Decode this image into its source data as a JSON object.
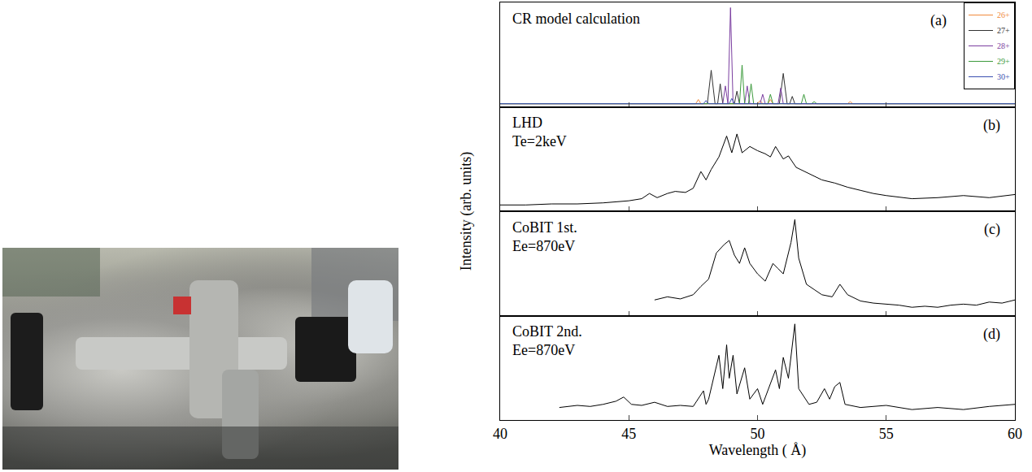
{
  "chart_data": {
    "type": "line",
    "x_label": "Wavelength ( Å)",
    "y_label": "Intensity (arb. units)",
    "xlim": [
      40,
      60
    ],
    "xticks": [
      40,
      45,
      50,
      55,
      60
    ],
    "tick_labels": "x",
    "panels": [
      {
        "label": "(a)",
        "text": [
          "CR model calculation"
        ],
        "ylim": [
          0,
          1
        ],
        "legend": "upper right",
        "series": [
          {
            "name": "26+",
            "color": "#f08a3c",
            "x": [
              40,
              47.6,
              47.7,
              47.8,
              50.0,
              50.1,
              50.2,
              50.4,
              50.5,
              50.6,
              53.5,
              53.6,
              53.7,
              60
            ],
            "values": [
              0.03,
              0.03,
              0.07,
              0.03,
              0.03,
              0.06,
              0.03,
              0.03,
              0.07,
              0.03,
              0.03,
              0.05,
              0.03,
              0.03
            ]
          },
          {
            "name": "27+",
            "color": "#333333",
            "x": [
              40,
              48.05,
              48.2,
              48.35,
              48.45,
              48.55,
              48.65,
              49.1,
              49.2,
              49.3,
              50.85,
              51.0,
              51.15,
              51.25,
              51.35,
              51.45,
              60
            ],
            "values": [
              0.03,
              0.03,
              0.35,
              0.03,
              0.03,
              0.22,
              0.03,
              0.03,
              0.15,
              0.03,
              0.03,
              0.32,
              0.03,
              0.03,
              0.1,
              0.03,
              0.03
            ]
          },
          {
            "name": "28+",
            "color": "#7b3fa0",
            "x": [
              40,
              48.65,
              48.75,
              48.85,
              48.95,
              49.05,
              49.5,
              49.6,
              49.7,
              50.1,
              50.2,
              50.3,
              50.8,
              50.9,
              51.0,
              60
            ],
            "values": [
              0.03,
              0.03,
              0.2,
              0.03,
              0.95,
              0.03,
              0.03,
              0.2,
              0.03,
              0.03,
              0.12,
              0.03,
              0.03,
              0.18,
              0.03,
              0.03
            ]
          },
          {
            "name": "29+",
            "color": "#3c9a3c",
            "x": [
              40,
              49.3,
              49.4,
              49.5,
              49.65,
              49.75,
              49.85,
              50.4,
              50.5,
              50.6,
              51.7,
              51.8,
              51.9,
              52.1,
              52.2,
              52.3,
              60
            ],
            "values": [
              0.03,
              0.03,
              0.4,
              0.03,
              0.03,
              0.22,
              0.03,
              0.03,
              0.12,
              0.03,
              0.03,
              0.12,
              0.03,
              0.03,
              0.05,
              0.03,
              0.03
            ]
          },
          {
            "name": "30+",
            "color": "#3b4fb0",
            "x": [
              40,
              47.9,
              48.0,
              48.1,
              48.9,
              49.0,
              49.1,
              60
            ],
            "values": [
              0.03,
              0.03,
              0.06,
              0.03,
              0.03,
              0.08,
              0.03,
              0.03
            ]
          }
        ]
      },
      {
        "label": "(b)",
        "text": [
          "LHD",
          "Te=2keV"
        ],
        "ylim": [
          0,
          1
        ],
        "series": [
          {
            "color": "#000000",
            "x": [
              40,
              41,
              42,
              43,
              44,
              45,
              45.5,
              45.8,
              46.1,
              46.5,
              46.8,
              47.2,
              47.5,
              47.8,
              48.0,
              48.2,
              48.5,
              48.8,
              49.0,
              49.2,
              49.4,
              49.7,
              50.0,
              50.3,
              50.5,
              50.7,
              51.0,
              51.2,
              51.5,
              52,
              52.5,
              53,
              53.5,
              54,
              54.5,
              55,
              56,
              57,
              58,
              59,
              60
            ],
            "values": [
              0.06,
              0.06,
              0.07,
              0.07,
              0.08,
              0.1,
              0.12,
              0.17,
              0.13,
              0.17,
              0.19,
              0.18,
              0.22,
              0.38,
              0.3,
              0.4,
              0.52,
              0.72,
              0.56,
              0.74,
              0.56,
              0.62,
              0.58,
              0.55,
              0.52,
              0.62,
              0.5,
              0.53,
              0.42,
              0.36,
              0.3,
              0.27,
              0.23,
              0.2,
              0.17,
              0.15,
              0.12,
              0.13,
              0.15,
              0.13,
              0.16
            ]
          }
        ]
      },
      {
        "label": "(c)",
        "text": [
          "CoBIT 1st.",
          "Ee=870eV"
        ],
        "ylim": [
          0,
          1
        ],
        "series": [
          {
            "color": "#000000",
            "x": [
              46,
              46.5,
              47,
              47.5,
              47.8,
              48.1,
              48.4,
              48.7,
              48.9,
              49.1,
              49.3,
              49.5,
              49.7,
              50.0,
              50.3,
              50.6,
              50.8,
              51.0,
              51.3,
              51.45,
              51.6,
              51.9,
              52.2,
              52.5,
              52.9,
              53.2,
              53.5,
              54,
              54.5,
              55,
              55.5,
              56,
              56.5,
              57,
              57.5,
              58,
              58.5,
              59,
              59.5,
              60
            ],
            "values": [
              0.15,
              0.18,
              0.16,
              0.2,
              0.28,
              0.35,
              0.6,
              0.68,
              0.72,
              0.58,
              0.5,
              0.65,
              0.5,
              0.4,
              0.33,
              0.5,
              0.45,
              0.4,
              0.7,
              0.92,
              0.55,
              0.3,
              0.25,
              0.2,
              0.18,
              0.3,
              0.2,
              0.14,
              0.12,
              0.11,
              0.1,
              0.08,
              0.09,
              0.08,
              0.1,
              0.11,
              0.1,
              0.13,
              0.12,
              0.15
            ]
          }
        ]
      },
      {
        "label": "(d)",
        "text": [
          "CoBIT 2nd.",
          "Ee=870eV"
        ],
        "ylim": [
          0,
          1
        ],
        "series": [
          {
            "color": "#000000",
            "x": [
              42.3,
              43,
              43.5,
              44,
              44.5,
              44.8,
              45.1,
              45.5,
              46,
              46.5,
              47,
              47.5,
              47.9,
              48.0,
              48.1,
              48.5,
              48.65,
              48.8,
              48.9,
              49.05,
              49.2,
              49.5,
              49.7,
              50.0,
              50.2,
              50.7,
              50.85,
              51.0,
              51.2,
              51.45,
              51.6,
              52.0,
              52.3,
              52.6,
              52.8,
              53.0,
              53.2,
              53.4,
              54,
              54.5,
              55,
              56,
              57,
              58,
              59,
              60
            ],
            "values": [
              0.12,
              0.14,
              0.13,
              0.15,
              0.18,
              0.22,
              0.15,
              0.14,
              0.17,
              0.13,
              0.14,
              0.13,
              0.28,
              0.15,
              0.2,
              0.62,
              0.3,
              0.72,
              0.4,
              0.62,
              0.25,
              0.5,
              0.2,
              0.3,
              0.15,
              0.48,
              0.3,
              0.6,
              0.4,
              0.92,
              0.3,
              0.15,
              0.17,
              0.3,
              0.2,
              0.32,
              0.36,
              0.15,
              0.12,
              0.13,
              0.14,
              0.1,
              0.12,
              0.1,
              0.13,
              0.15
            ]
          }
        ]
      }
    ]
  }
}
